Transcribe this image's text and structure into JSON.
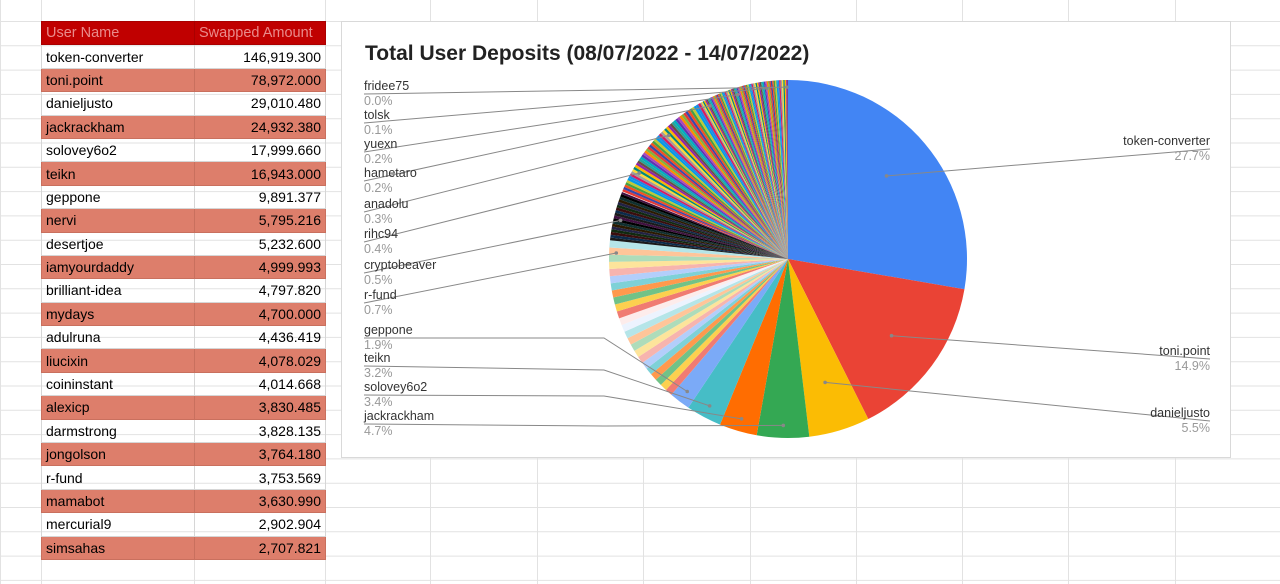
{
  "table": {
    "headers": [
      "User Name",
      "Swapped Amount"
    ],
    "rows": [
      [
        "token-converter",
        "146,919.300"
      ],
      [
        "toni.point",
        "78,972.000"
      ],
      [
        "danieljusto",
        "29,010.480"
      ],
      [
        "jackrackham",
        "24,932.380"
      ],
      [
        "solovey6o2",
        "17,999.660"
      ],
      [
        "teikn",
        "16,943.000"
      ],
      [
        "geppone",
        "9,891.377"
      ],
      [
        "nervi",
        "5,795.216"
      ],
      [
        "desertjoe",
        "5,232.600"
      ],
      [
        "iamyourdaddy",
        "4,999.993"
      ],
      [
        "brilliant-idea",
        "4,797.820"
      ],
      [
        "mydays",
        "4,700.000"
      ],
      [
        "adulruna",
        "4,436.419"
      ],
      [
        "liucixin",
        "4,078.029"
      ],
      [
        "coininstant",
        "4,014.668"
      ],
      [
        "alexicp",
        "3,830.485"
      ],
      [
        "darmstrong",
        "3,828.135"
      ],
      [
        "jongolson",
        "3,764.180"
      ],
      [
        "r-fund",
        "3,753.569"
      ],
      [
        "mamabot",
        "3,630.990"
      ],
      [
        "mercurial9",
        "2,902.904"
      ],
      [
        "simsahas",
        "2,707.821"
      ]
    ]
  },
  "colors": {
    "header_bg": "#c00000",
    "header_text": "#e98b8b",
    "alt_row_bg": "#dd7e6b"
  },
  "chart_data": {
    "type": "pie",
    "title": "Total User Deposits (08/07/2022 - 14/07/2022)",
    "major_slices": [
      {
        "label": "token-converter",
        "percent": 27.7,
        "color": "#4285f4"
      },
      {
        "label": "toni.point",
        "percent": 14.9,
        "color": "#ea4335"
      },
      {
        "label": "danieljusto",
        "percent": 5.5,
        "color": "#fbbc04"
      },
      {
        "label": "jackrackham",
        "percent": 4.7,
        "color": "#34a853"
      },
      {
        "label": "solovey6o2",
        "percent": 3.4,
        "color": "#ff6d01"
      },
      {
        "label": "teikn",
        "percent": 3.2,
        "color": "#46bdc6"
      },
      {
        "label": "geppone",
        "percent": 1.9,
        "color": "#7baaf7"
      }
    ],
    "minor_slice_colors": [
      "#f07b72",
      "#fcd04f",
      "#71c287",
      "#ff994d",
      "#7ed1d7",
      "#b3cefb",
      "#f7b4ae",
      "#fde49b",
      "#aedcba",
      "#ffc599",
      "#b5e5e8",
      "#ecf3fe",
      "#fdeceb"
    ],
    "labeled_minor_slices": [
      {
        "label": "r-fund",
        "percent": 0.7
      },
      {
        "label": "cryptobeaver",
        "percent": 0.5
      },
      {
        "label": "rihc94",
        "percent": 0.4
      },
      {
        "label": "anadolu",
        "percent": 0.3
      },
      {
        "label": "hametaro",
        "percent": 0.2
      },
      {
        "label": "yuexn",
        "percent": 0.2
      },
      {
        "label": "tolsk",
        "percent": 0.1
      },
      {
        "label": "fridee75",
        "percent": 0.0
      }
    ],
    "legend": "none",
    "label_style": "name and percent with leader lines"
  }
}
